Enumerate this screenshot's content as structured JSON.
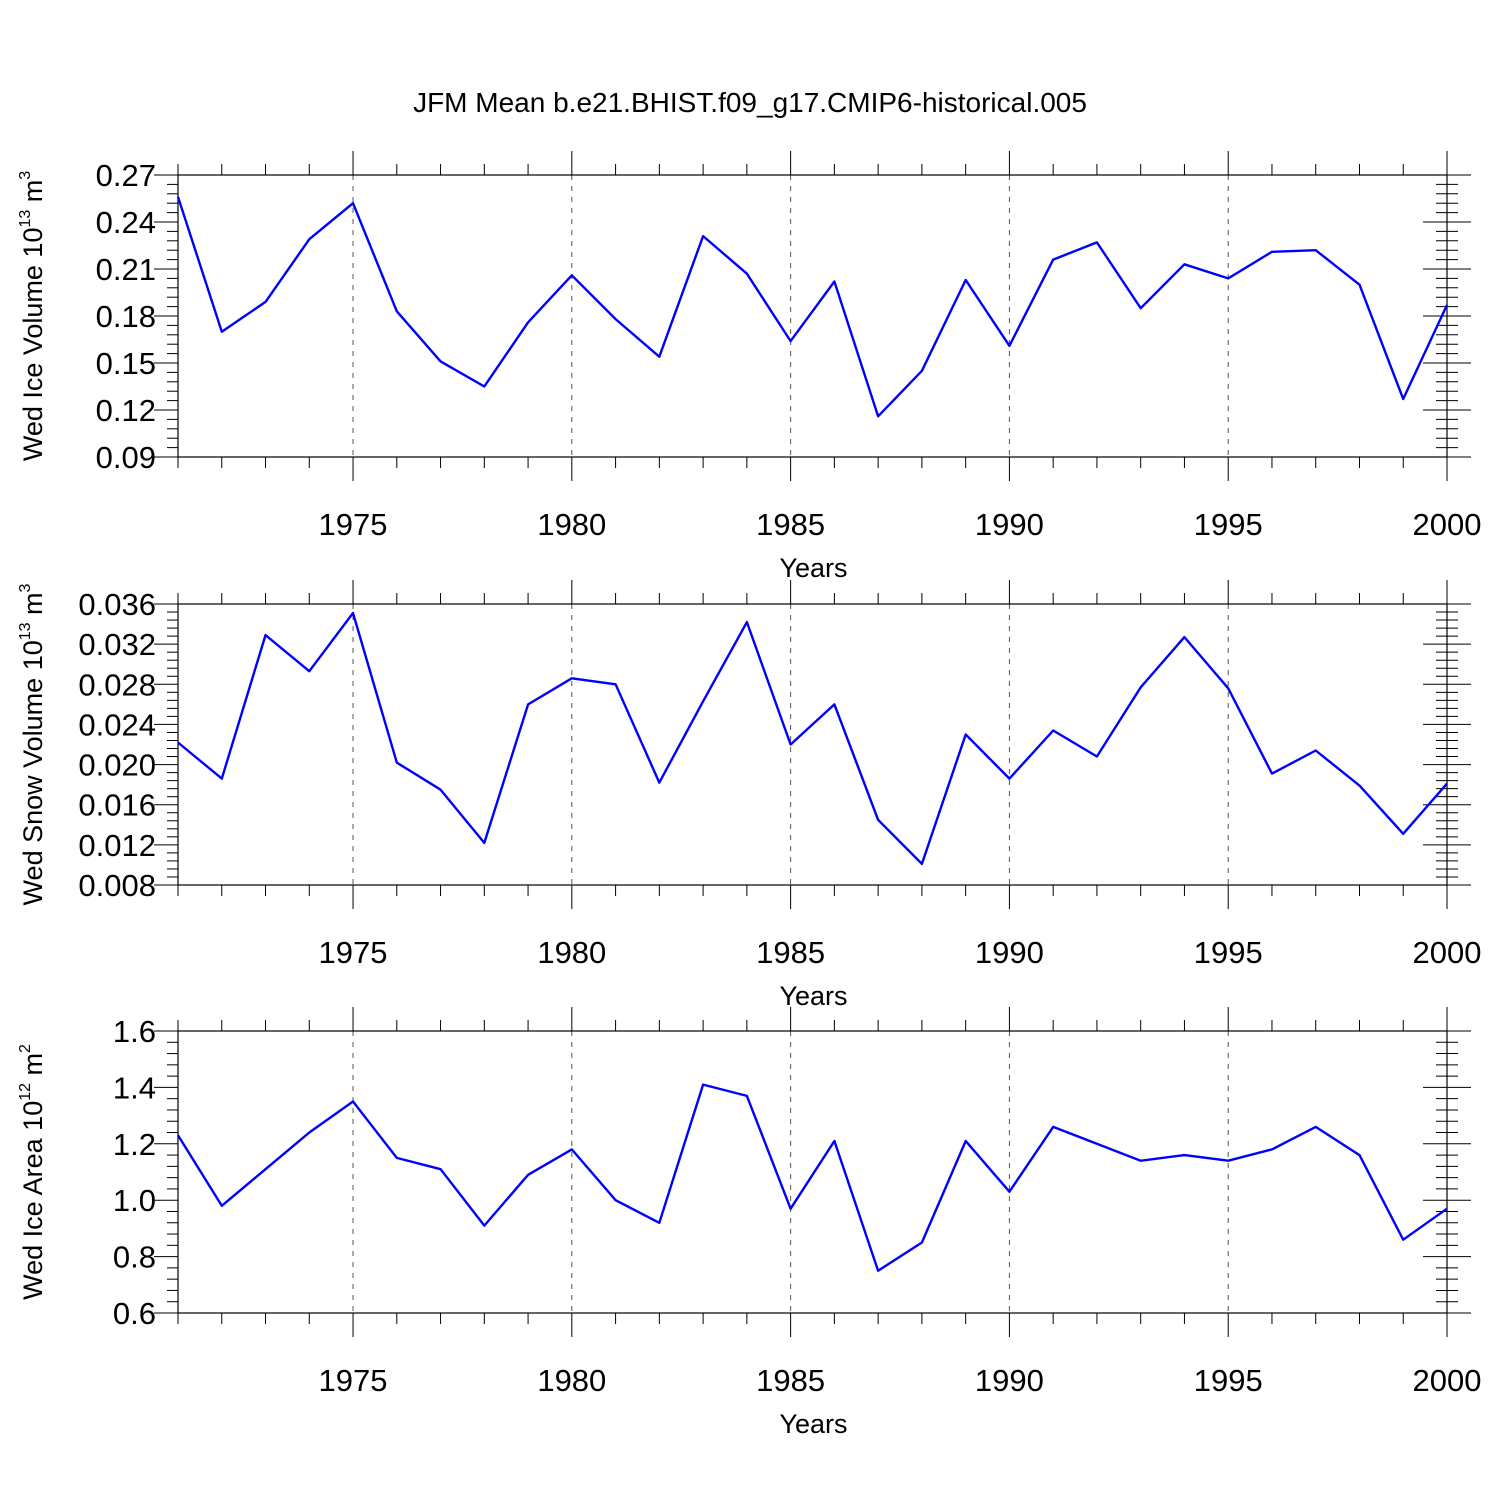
{
  "title": "JFM Mean b.e21.BHIST.f09_g17.CMIP6-historical.005",
  "colors": {
    "line": "#0000ff",
    "axis": "#000000",
    "grid": "#555555"
  },
  "chart_data": [
    {
      "type": "line",
      "ylabel_main": "Wed Ice Volume 10",
      "ylabel_exp": "13",
      "ylabel_unit": " m",
      "ylabel_unit_exp": "3",
      "xlabel": "Years",
      "xlim": [
        1971,
        2000
      ],
      "ylim": [
        0.09,
        0.27
      ],
      "yticks": [
        "0.09",
        "0.12",
        "0.15",
        "0.18",
        "0.21",
        "0.24",
        "0.27"
      ],
      "yticks_values": [
        0.09,
        0.12,
        0.15,
        0.18,
        0.21,
        0.24,
        0.27
      ],
      "xticks": [
        "1975",
        "1980",
        "1985",
        "1990",
        "1995",
        "2000"
      ],
      "xticks_values": [
        1975,
        1980,
        1985,
        1990,
        1995,
        2000
      ],
      "x": [
        1971,
        1972,
        1973,
        1974,
        1975,
        1976,
        1977,
        1978,
        1979,
        1980,
        1981,
        1982,
        1983,
        1984,
        1985,
        1986,
        1987,
        1988,
        1989,
        1990,
        1991,
        1992,
        1993,
        1994,
        1995,
        1996,
        1997,
        1998,
        1999,
        2000
      ],
      "values": [
        0.256,
        0.17,
        0.189,
        0.229,
        0.252,
        0.183,
        0.151,
        0.135,
        0.176,
        0.206,
        0.178,
        0.154,
        0.231,
        0.207,
        0.164,
        0.202,
        0.116,
        0.145,
        0.203,
        0.161,
        0.216,
        0.227,
        0.185,
        0.213,
        0.204,
        0.221,
        0.222,
        0.2,
        0.127,
        0.187
      ]
    },
    {
      "type": "line",
      "ylabel_main": "Wed Snow Volume 10",
      "ylabel_exp": "13",
      "ylabel_unit": " m",
      "ylabel_unit_exp": "3",
      "xlabel": "Years",
      "xlim": [
        1971,
        2000
      ],
      "ylim": [
        0.008,
        0.036
      ],
      "yticks": [
        "0.008",
        "0.012",
        "0.016",
        "0.020",
        "0.024",
        "0.028",
        "0.032",
        "0.036"
      ],
      "yticks_values": [
        0.008,
        0.012,
        0.016,
        0.02,
        0.024,
        0.028,
        0.032,
        0.036
      ],
      "xticks": [
        "1975",
        "1980",
        "1985",
        "1990",
        "1995",
        "2000"
      ],
      "xticks_values": [
        1975,
        1980,
        1985,
        1990,
        1995,
        2000
      ],
      "x": [
        1971,
        1972,
        1973,
        1974,
        1975,
        1976,
        1977,
        1978,
        1979,
        1980,
        1981,
        1982,
        1983,
        1984,
        1985,
        1986,
        1987,
        1988,
        1989,
        1990,
        1991,
        1992,
        1993,
        1994,
        1995,
        1996,
        1997,
        1998,
        1999,
        2000
      ],
      "values": [
        0.0222,
        0.0186,
        0.0329,
        0.0293,
        0.0351,
        0.0202,
        0.0175,
        0.0122,
        0.026,
        0.0286,
        0.028,
        0.0182,
        0.0263,
        0.0342,
        0.022,
        0.026,
        0.0145,
        0.0101,
        0.023,
        0.0186,
        0.0234,
        0.0208,
        0.0277,
        0.0327,
        0.0276,
        0.0191,
        0.0214,
        0.0179,
        0.0131,
        0.0181
      ]
    },
    {
      "type": "line",
      "ylabel_main": "Wed Ice Area 10",
      "ylabel_exp": "12",
      "ylabel_unit": " m",
      "ylabel_unit_exp": "2",
      "xlabel": "Years",
      "xlim": [
        1971,
        2000
      ],
      "ylim": [
        0.6,
        1.6
      ],
      "yticks": [
        "0.6",
        "0.8",
        "1.0",
        "1.2",
        "1.4",
        "1.6"
      ],
      "yticks_values": [
        0.6,
        0.8,
        1.0,
        1.2,
        1.4,
        1.6
      ],
      "xticks": [
        "1975",
        "1980",
        "1985",
        "1990",
        "1995",
        "2000"
      ],
      "xticks_values": [
        1975,
        1980,
        1985,
        1990,
        1995,
        2000
      ],
      "x": [
        1971,
        1972,
        1973,
        1974,
        1975,
        1976,
        1977,
        1978,
        1979,
        1980,
        1981,
        1982,
        1983,
        1984,
        1985,
        1986,
        1987,
        1988,
        1989,
        1990,
        1991,
        1992,
        1993,
        1994,
        1995,
        1996,
        1997,
        1998,
        1999,
        2000
      ],
      "values": [
        1.23,
        0.98,
        1.11,
        1.24,
        1.35,
        1.15,
        1.11,
        0.91,
        1.09,
        1.18,
        1.0,
        0.92,
        1.41,
        1.37,
        0.97,
        1.21,
        0.75,
        0.85,
        1.21,
        1.03,
        1.26,
        1.2,
        1.14,
        1.16,
        1.14,
        1.18,
        1.26,
        1.16,
        0.86,
        0.97
      ]
    }
  ]
}
